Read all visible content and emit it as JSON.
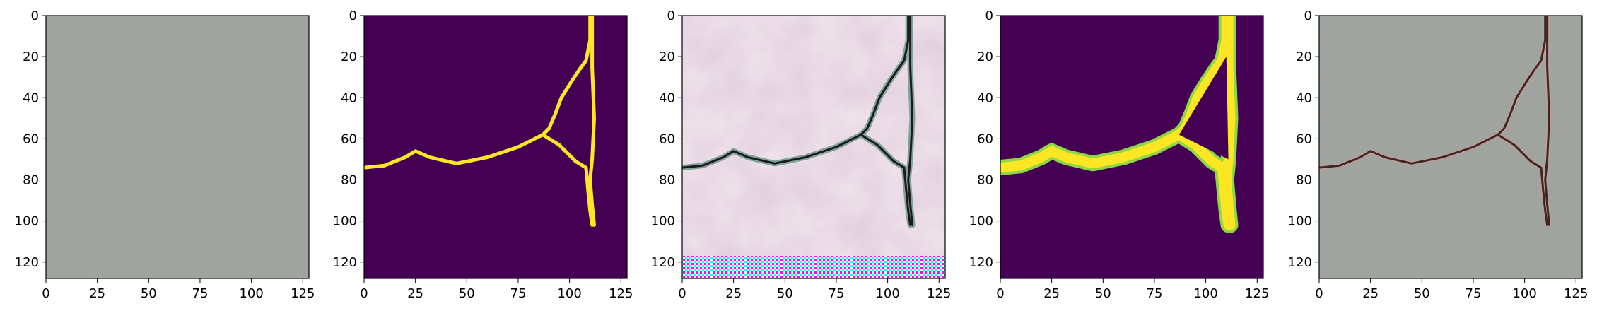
{
  "figure": {
    "panels": [
      {
        "id": "texture",
        "content": "concrete-texture",
        "xticks": [
          "0",
          "25",
          "50",
          "75",
          "100",
          "125"
        ],
        "yticks": [
          "0",
          "20",
          "40",
          "60",
          "80",
          "100",
          "120"
        ]
      },
      {
        "id": "binary-mask",
        "content": "binary-crack-mask",
        "xticks": [
          "0",
          "25",
          "50",
          "75",
          "100",
          "125"
        ],
        "yticks": [
          "0",
          "20",
          "40",
          "60",
          "80",
          "100",
          "120"
        ]
      },
      {
        "id": "generated",
        "content": "generated-crack-texture",
        "xticks": [
          "0",
          "25",
          "50",
          "75",
          "100",
          "125"
        ],
        "yticks": [
          "0",
          "20",
          "40",
          "60",
          "80",
          "100",
          "120"
        ]
      },
      {
        "id": "smooth-mask",
        "content": "smoothed-crack-mask",
        "xticks": [
          "0",
          "25",
          "50",
          "75",
          "100",
          "125"
        ],
        "yticks": [
          "0",
          "20",
          "40",
          "60",
          "80",
          "100",
          "120"
        ]
      },
      {
        "id": "overlay",
        "content": "crack-on-concrete",
        "xticks": [
          "0",
          "25",
          "50",
          "75",
          "100",
          "125"
        ],
        "yticks": [
          "0",
          "20",
          "40",
          "60",
          "80",
          "100",
          "120"
        ]
      }
    ],
    "crack_path": {
      "main": [
        [
          0,
          74
        ],
        [
          10,
          73
        ],
        [
          20,
          69
        ],
        [
          25,
          66
        ],
        [
          32,
          69
        ],
        [
          45,
          72
        ],
        [
          60,
          69
        ],
        [
          75,
          64
        ],
        [
          87,
          58
        ],
        [
          95,
          63
        ],
        [
          103,
          71
        ],
        [
          108,
          74
        ]
      ],
      "right_branch": [
        [
          110,
          0
        ],
        [
          110,
          12
        ],
        [
          108,
          22
        ],
        [
          105,
          26
        ],
        [
          101,
          32
        ],
        [
          96,
          40
        ],
        [
          93,
          48
        ],
        [
          90,
          55
        ],
        [
          87,
          58
        ]
      ],
      "right_edge": [
        [
          111,
          0
        ],
        [
          111,
          25
        ],
        [
          112,
          50
        ],
        [
          111,
          70
        ],
        [
          110,
          80
        ],
        [
          111,
          92
        ],
        [
          112,
          102
        ]
      ],
      "stem": [
        [
          108,
          74
        ],
        [
          109,
          85
        ],
        [
          110,
          95
        ],
        [
          111,
          102
        ]
      ]
    },
    "colors": {
      "viridis_dark": "#440154",
      "viridis_bright": "#fde725",
      "concrete": "#9ca19b",
      "crack_dark": "#3b2a24"
    }
  }
}
